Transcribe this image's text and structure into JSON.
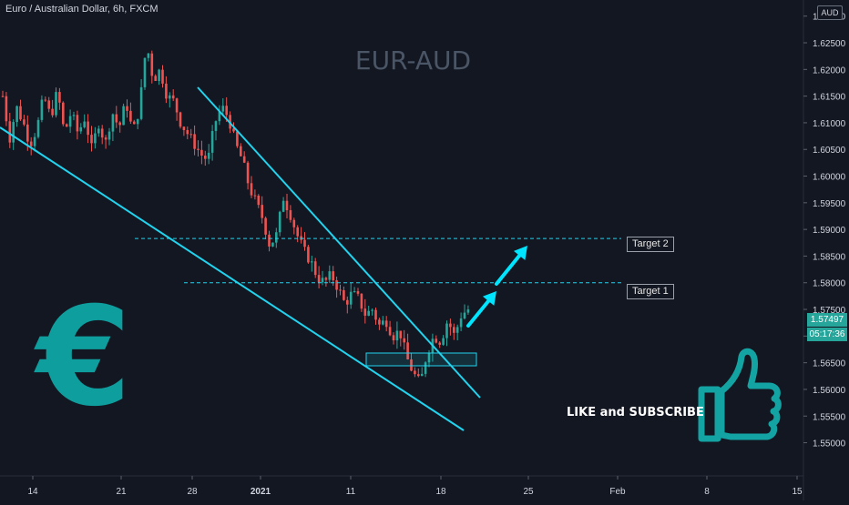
{
  "header": {
    "symbol_title": "Euro / Australian Dollar, 6h, FXCM"
  },
  "watermark": "EUR-AUD",
  "currency_badge": "AUD",
  "annotations": {
    "target_1": "Target 1",
    "target_2": "Target 2",
    "cta": "LIKE and SUBSCRIBE",
    "euro_symbol": "€"
  },
  "price_badges": {
    "last_price": "1.57497",
    "countdown": "05:17:36"
  },
  "colors": {
    "background": "#131722",
    "up": "#26a69a",
    "down": "#ef5350",
    "trendline": "#22d3ee",
    "target_line": "#22d3ee",
    "zone": "#22d3ee",
    "arrow": "#00e5ff",
    "badge_up": "#26a69a",
    "euro": "#0f9e9e",
    "thumb": "#13a3a3",
    "watermark": "#4a5566"
  },
  "icons": {
    "thumb": "thumbs-up-icon",
    "arrow": "arrow-up-right-icon"
  },
  "chart_data": {
    "type": "candlestick",
    "timeframe": "6h",
    "y_axis": {
      "ticks": [
        "1.55000",
        "1.55500",
        "1.56000",
        "1.56500",
        "1.57000",
        "1.57500",
        "1.58000",
        "1.58500",
        "1.59000",
        "1.59500",
        "1.60000",
        "1.60500",
        "1.61000",
        "1.61500",
        "1.62000",
        "1.62500",
        "1.63000"
      ],
      "ylim": [
        1.546,
        1.632
      ]
    },
    "x_axis": {
      "ticks": [
        "14",
        "21",
        "28",
        "2021",
        "11",
        "18",
        "25",
        "Feb",
        "8",
        "15"
      ]
    },
    "target_levels": [
      {
        "label": "Target 1",
        "value": 1.58
      },
      {
        "label": "Target 2",
        "value": 1.5883
      }
    ],
    "last_price": 1.57497,
    "path_points": [
      1.615,
      1.607,
      1.613,
      1.61,
      1.606,
      1.609,
      1.615,
      1.611,
      1.616,
      1.608,
      1.612,
      1.608,
      1.611,
      1.605,
      1.61,
      1.606,
      1.612,
      1.609,
      1.614,
      1.608,
      1.613,
      1.625,
      1.618,
      1.62,
      1.615,
      1.614,
      1.61,
      1.608,
      1.606,
      1.604,
      1.603,
      1.61,
      1.613,
      1.611,
      1.606,
      1.603,
      1.598,
      1.595,
      1.592,
      1.587,
      1.589,
      1.596,
      1.593,
      1.589,
      1.586,
      1.584,
      1.581,
      1.58,
      1.5815,
      1.579,
      1.576,
      1.578,
      1.577,
      1.574,
      1.575,
      1.572,
      1.573,
      1.57,
      1.571,
      1.566,
      1.563,
      1.561,
      1.567,
      1.57,
      1.569,
      1.573,
      1.57,
      1.574,
      1.575
    ]
  }
}
